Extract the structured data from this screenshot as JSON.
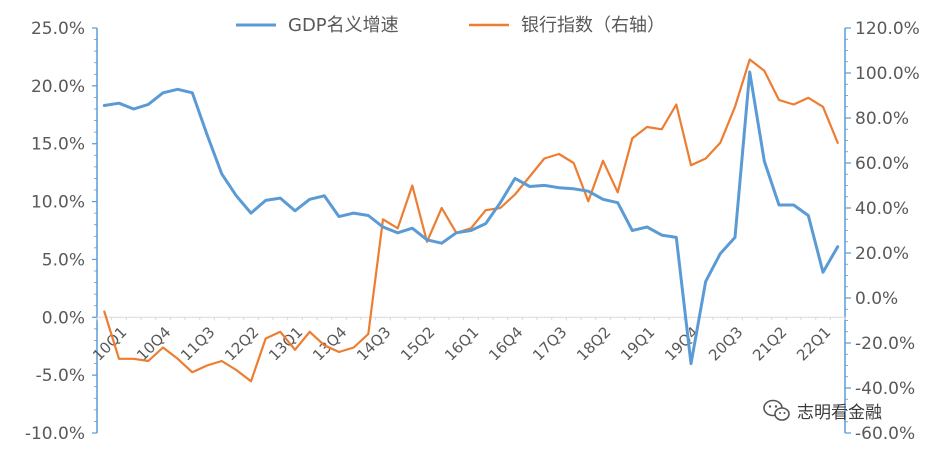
{
  "chart_data": {
    "type": "line",
    "legend_position": "top",
    "grid": false,
    "x_tick_labels": [
      "10Q1",
      "10Q4",
      "11Q3",
      "12Q2",
      "13Q1",
      "13Q4",
      "14Q3",
      "15Q2",
      "16Q1",
      "16Q4",
      "17Q3",
      "18Q2",
      "19Q1",
      "19Q4",
      "20Q3",
      "21Q2",
      "22Q1"
    ],
    "x_tick_every": 3,
    "y_left": {
      "ylim": [
        -10,
        25
      ],
      "ticks": [
        "-10.0%",
        "-5.0%",
        "0.0%",
        "5.0%",
        "10.0%",
        "15.0%",
        "20.0%",
        "25.0%"
      ]
    },
    "y_right": {
      "ylim": [
        -60,
        120
      ],
      "ticks": [
        "-60.0%",
        "-40.0%",
        "-20.0%",
        "0.0%",
        "20.0%",
        "40.0%",
        "60.0%",
        "80.0%",
        "100.0%",
        "120.0%"
      ]
    },
    "series": [
      {
        "name": "GDP名义增速",
        "axis": "left",
        "color": "#5B9BD5",
        "values": [
          18.3,
          18.5,
          18.0,
          18.4,
          19.4,
          19.7,
          19.4,
          15.8,
          12.4,
          10.5,
          9.0,
          10.1,
          10.3,
          9.2,
          10.2,
          10.5,
          8.7,
          9.0,
          8.8,
          7.8,
          7.3,
          7.7,
          6.7,
          6.4,
          7.3,
          7.5,
          8.1,
          9.9,
          12.0,
          11.3,
          11.4,
          11.2,
          11.1,
          10.9,
          10.2,
          9.9,
          7.5,
          7.8,
          7.1,
          6.9,
          -4.0,
          3.1,
          5.5,
          6.9,
          21.2,
          13.5,
          9.7,
          9.7,
          8.8,
          3.9,
          6.1
        ]
      },
      {
        "name": "银行指数（右轴）",
        "axis": "right",
        "color": "#ED7D31",
        "values": [
          -6,
          -27,
          -27,
          -28,
          -22,
          -27,
          -33,
          -30,
          -28,
          -32,
          -37,
          -18,
          -15,
          -23,
          -15,
          -21,
          -24,
          -22,
          -16,
          35,
          31,
          50,
          25,
          40,
          29,
          31,
          39,
          40,
          46,
          54,
          62,
          64,
          60,
          43,
          61,
          47,
          71,
          76,
          75,
          86,
          59,
          62,
          69,
          85,
          106,
          101,
          88,
          86,
          89,
          85,
          69
        ]
      }
    ]
  },
  "watermark": {
    "text": "志明看金融",
    "icon": "wechat-icon"
  }
}
